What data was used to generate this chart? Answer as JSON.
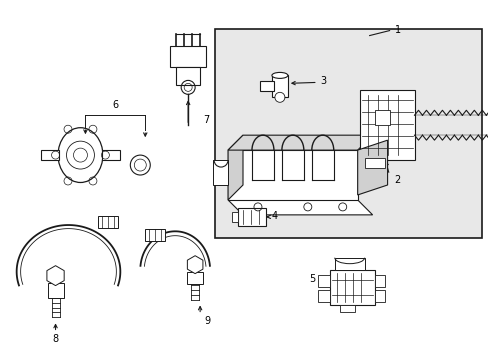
{
  "bg_color": "#ffffff",
  "line_color": "#1a1a1a",
  "box_bg": "#e8e8e8",
  "fig_width": 4.89,
  "fig_height": 3.6,
  "dpi": 100
}
